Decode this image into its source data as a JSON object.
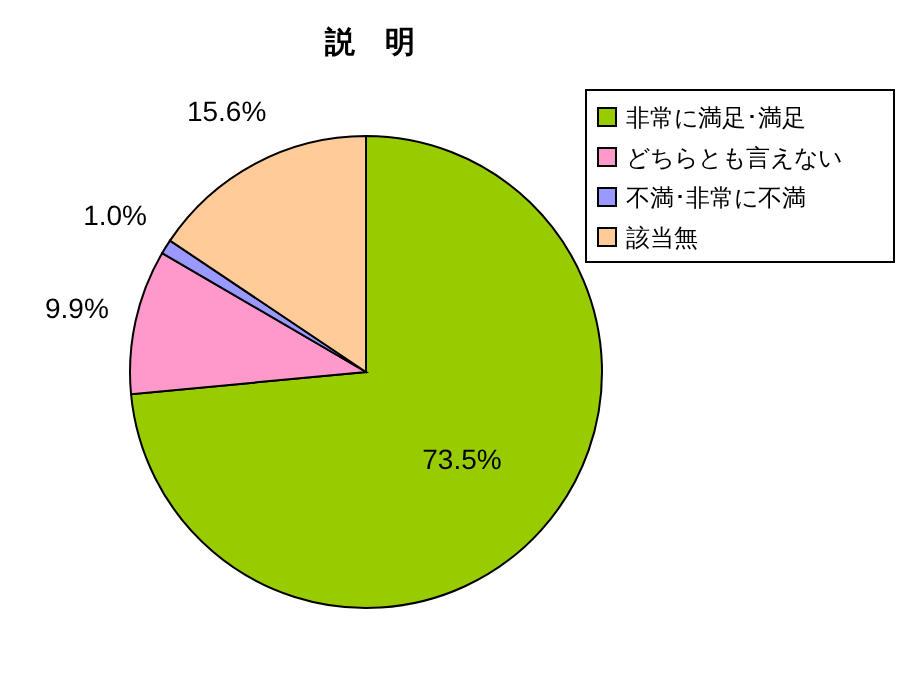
{
  "chart_data": {
    "type": "pie",
    "title": "説　明",
    "categories": [
      "非常に満足･満足",
      "どちらとも言えない",
      "不満･非常に不満",
      "該当無"
    ],
    "values": [
      73.5,
      9.9,
      1.0,
      15.6
    ],
    "colors": [
      "#99cc00",
      "#ff99cc",
      "#9999ff",
      "#ffcc99"
    ],
    "value_labels": [
      "73.5%",
      "9.9%",
      "1.0%",
      "15.6%"
    ],
    "legend": "right"
  }
}
